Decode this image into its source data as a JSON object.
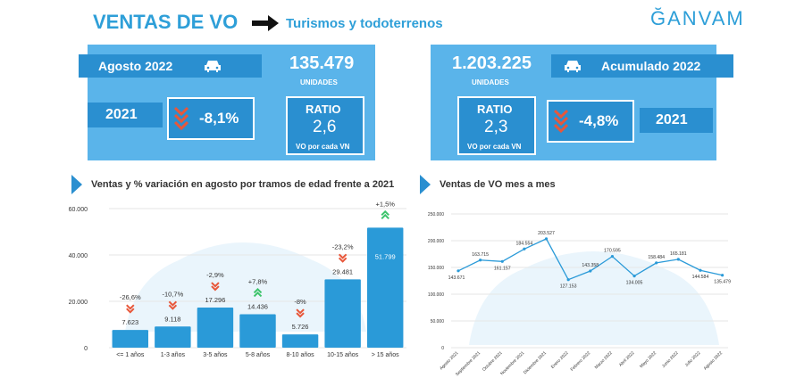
{
  "header": {
    "title": "VENTAS DE VO",
    "subtitle": "Turismos y todoterrenos",
    "logo": "ĞANVAM"
  },
  "left_panel": {
    "period": "Agosto 2022",
    "units_value": "135.479",
    "units_label": "UNIDADES",
    "compare_year": "2021",
    "variation": "-8,1%",
    "ratio_label": "RATIO",
    "ratio_value": "2,6",
    "ratio_caption": "VO por cada VN",
    "icon": "car-icon"
  },
  "right_panel": {
    "period": "Acumulado 2022",
    "units_value": "1.203.225",
    "units_label": "UNIDADES",
    "compare_year": "2021",
    "variation": "-4,8%",
    "ratio_label": "RATIO",
    "ratio_value": "2,3",
    "ratio_caption": "VO por cada VN",
    "icon": "car-icon"
  },
  "colors": {
    "accent": "#2e9fd8",
    "panel": "#5ab4ea",
    "dark": "#2a8fd0",
    "down": "#e8573a",
    "up": "#3cc46b"
  },
  "chart_data": [
    {
      "type": "bar",
      "title": "Ventas y % variación en agosto por tramos de edad frente a 2021",
      "categories": [
        "<= 1 años",
        "1-3 años",
        "3-5 años",
        "5-8 años",
        "8-10 años",
        "10-15 años",
        "> 15 años"
      ],
      "values": [
        7623,
        9118,
        17296,
        14436,
        5726,
        29481,
        51799
      ],
      "value_labels": [
        "7.623",
        "9.118",
        "17.296",
        "14.436",
        "5.726",
        "29.481",
        "51.799"
      ],
      "variations": [
        "-26,6%",
        "-10,7%",
        "-2,9%",
        "+7,8%",
        "-8%",
        "-23,2%",
        "+1,5%"
      ],
      "ylim": [
        0,
        60000
      ],
      "yticks": [
        0,
        20000,
        40000,
        60000
      ],
      "ytick_labels": [
        "0",
        "20.000",
        "40.000",
        "60.000"
      ]
    },
    {
      "type": "line",
      "title": "Ventas de VO mes a mes",
      "categories": [
        "Agosto 2021",
        "Septiembre 2021",
        "Octubre 2021",
        "Noviembre 2021",
        "Diciembre 2021",
        "Enero 2022",
        "Febrero 2022",
        "Marzo 2022",
        "Abril 2022",
        "Mayo 2022",
        "Junio 2022",
        "Julio 2022",
        "Agosto 2022"
      ],
      "values": [
        143671,
        163715,
        161157,
        184554,
        203527,
        127153,
        143358,
        170595,
        134005,
        158484,
        165181,
        144584,
        135479
      ],
      "value_labels": [
        "143.671",
        "163.715",
        "161.157",
        "184.554",
        "203.527",
        "127.153",
        "143.358",
        "170.595",
        "134.005",
        "158.484",
        "165.181",
        "144.584",
        "135.479"
      ],
      "ylim": [
        0,
        250000
      ],
      "yticks": [
        0,
        50000,
        100000,
        150000,
        200000,
        250000
      ],
      "ytick_labels": [
        "0",
        "50.000",
        "100.000",
        "150.000",
        "200.000",
        "250.000"
      ]
    }
  ]
}
